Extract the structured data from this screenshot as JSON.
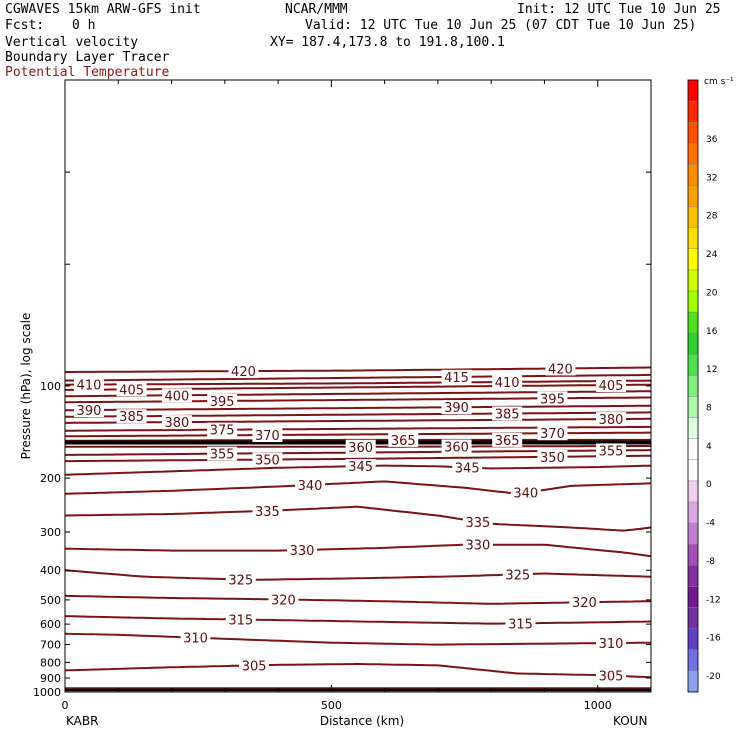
{
  "header": {
    "model": "CGWAVES 15km ARW-GFS init",
    "org": "NCAR/MMM",
    "init": "Init: 12 UTC Tue 10 Jun 25",
    "fcst_label": "Fcst:",
    "fcst_value": "0 h",
    "valid": "Valid: 12 UTC Tue 10 Jun 25 (07 CDT Tue 10 Jun 25)",
    "field1": "Vertical velocity",
    "xy": "XY= 187.4,173.8 to 191.8,100.1",
    "field2": "Boundary Layer Tracer",
    "field3": "Potential Temperature"
  },
  "colors": {
    "contour": "#7a1414",
    "contour_label": "#5c0f0f",
    "title_red": "#8b1a1a",
    "tropopause": "#000000"
  },
  "chart_data": {
    "type": "line",
    "xlabel": "Distance (km)",
    "ylabel": "Pressure (hPa), log scale",
    "x_ticks": [
      "0",
      "500",
      "1000"
    ],
    "xlim": [
      0,
      1100
    ],
    "y_scale": "log",
    "ylim": [
      1000,
      10
    ],
    "y_ticks": [
      "100",
      "200",
      "300",
      "400",
      "500",
      "600",
      "700",
      "800",
      "900",
      "1000"
    ],
    "y_tick_values": [
      100,
      200,
      300,
      400,
      500,
      600,
      700,
      800,
      900,
      1000
    ],
    "left_station": "KABR",
    "right_station": "KOUN",
    "series": [
      {
        "name": "420",
        "x": [
          0,
          550,
          1100
        ],
        "y": [
          90,
          89,
          87
        ],
        "labels_at": [
          335,
          930
        ]
      },
      {
        "name": "415",
        "x": [
          0,
          550,
          1100
        ],
        "y": [
          96,
          94,
          92
        ],
        "labels_at": [
          735
        ]
      },
      {
        "name": "410",
        "x": [
          0,
          550,
          1100
        ],
        "y": [
          99,
          98,
          96
        ],
        "labels_at": [
          45,
          830
        ]
      },
      {
        "name": "405",
        "x": [
          0,
          550,
          1100
        ],
        "y": [
          103,
          101,
          99
        ],
        "labels_at": [
          125,
          1025
        ]
      },
      {
        "name": "400",
        "x": [
          0,
          550,
          1100
        ],
        "y": [
          108,
          106,
          104
        ],
        "labels_at": [
          210
        ]
      },
      {
        "name": "395",
        "x": [
          0,
          550,
          1100
        ],
        "y": [
          113,
          111,
          109
        ],
        "labels_at": [
          295,
          915
        ]
      },
      {
        "name": "390",
        "x": [
          0,
          550,
          1100
        ],
        "y": [
          120,
          118,
          116
        ],
        "labels_at": [
          45,
          735
        ]
      },
      {
        "name": "385",
        "x": [
          0,
          550,
          1100
        ],
        "y": [
          126,
          124,
          122
        ],
        "labels_at": [
          125,
          830
        ]
      },
      {
        "name": "380",
        "x": [
          0,
          550,
          1100
        ],
        "y": [
          132,
          130,
          128
        ],
        "labels_at": [
          210,
          1025
        ]
      },
      {
        "name": "375",
        "x": [
          0,
          550,
          1100
        ],
        "y": [
          140,
          138,
          136
        ],
        "labels_at": [
          295
        ]
      },
      {
        "name": "370",
        "x": [
          0,
          550,
          1100
        ],
        "y": [
          146,
          144,
          142
        ],
        "labels_at": [
          380,
          915
        ]
      },
      {
        "name": "365",
        "x": [
          0,
          550,
          1100
        ],
        "y": [
          151,
          150,
          150
        ],
        "labels_at": [
          635,
          830
        ]
      },
      {
        "name": "360",
        "x": [
          0,
          550,
          1100
        ],
        "y": [
          158,
          158,
          157
        ],
        "labels_at": [
          555,
          735
        ]
      },
      {
        "name": "355",
        "x": [
          0,
          550,
          1100
        ],
        "y": [
          168,
          165,
          162
        ],
        "labels_at": [
          295,
          1025
        ]
      },
      {
        "name": "350",
        "x": [
          0,
          550,
          1100
        ],
        "y": [
          176,
          173,
          169
        ],
        "labels_at": [
          380,
          915
        ]
      },
      {
        "name": "345",
        "x": [
          0,
          200,
          400,
          600,
          700,
          800,
          1000,
          1100
        ],
        "y": [
          195,
          190,
          185,
          182,
          183,
          186,
          184,
          182
        ],
        "labels_at": [
          555,
          755
        ]
      },
      {
        "name": "340",
        "x": [
          0,
          200,
          400,
          600,
          750,
          850,
          950,
          1100
        ],
        "y": [
          225,
          220,
          213,
          205,
          215,
          225,
          212,
          208
        ],
        "labels_at": [
          460,
          865
        ]
      },
      {
        "name": "335",
        "x": [
          0,
          200,
          400,
          550,
          700,
          800,
          950,
          1050,
          1100
        ],
        "y": [
          265,
          262,
          255,
          248,
          265,
          282,
          290,
          297,
          290
        ],
        "labels_at": [
          380,
          775
        ]
      },
      {
        "name": "330",
        "x": [
          0,
          200,
          400,
          600,
          750,
          900,
          1050,
          1100
        ],
        "y": [
          340,
          345,
          345,
          338,
          330,
          330,
          350,
          360
        ],
        "labels_at": [
          445,
          775
        ]
      },
      {
        "name": "325",
        "x": [
          0,
          150,
          350,
          550,
          750,
          900,
          1100
        ],
        "y": [
          400,
          420,
          430,
          425,
          418,
          410,
          420
        ],
        "labels_at": [
          330,
          850
        ]
      },
      {
        "name": "320",
        "x": [
          0,
          200,
          400,
          600,
          800,
          1000,
          1100
        ],
        "y": [
          485,
          493,
          498,
          505,
          515,
          508,
          505
        ],
        "labels_at": [
          410,
          975
        ]
      },
      {
        "name": "315",
        "x": [
          0,
          200,
          400,
          600,
          800,
          1000,
          1100
        ],
        "y": [
          565,
          575,
          582,
          590,
          598,
          592,
          588
        ],
        "labels_at": [
          330,
          855
        ]
      },
      {
        "name": "310",
        "x": [
          0,
          100,
          300,
          500,
          700,
          900,
          1100
        ],
        "y": [
          645,
          650,
          670,
          690,
          700,
          695,
          690
        ],
        "labels_at": [
          245,
          1025
        ]
      },
      {
        "name": "305",
        "x": [
          0,
          200,
          400,
          550,
          700,
          850,
          1000,
          1100
        ],
        "y": [
          850,
          830,
          815,
          810,
          818,
          870,
          880,
          895
        ],
        "labels_at": [
          355,
          1025
        ]
      }
    ],
    "colorbar": {
      "unit": "cm s⁻¹",
      "tick_labels": [
        "36",
        "32",
        "28",
        "24",
        "20",
        "16",
        "12",
        "8",
        "4",
        "0",
        "-4",
        "-8",
        "-12",
        "-16",
        "-20"
      ],
      "colors": [
        "#ff0000",
        "#ff2800",
        "#ff5000",
        "#ff6e00",
        "#ff8c00",
        "#ffa000",
        "#ffc000",
        "#ffe000",
        "#ffff00",
        "#d0ff00",
        "#a0ff00",
        "#50e020",
        "#30d030",
        "#50e050",
        "#80ee80",
        "#b0f8b0",
        "#e0ffe0",
        "#ffffff",
        "#ffffff",
        "#f0d0f0",
        "#d8a8e0",
        "#c080d0",
        "#a050b8",
        "#8030a0",
        "#701890",
        "#7030a0",
        "#6040c0",
        "#7070e0",
        "#90a0f0"
      ]
    }
  }
}
